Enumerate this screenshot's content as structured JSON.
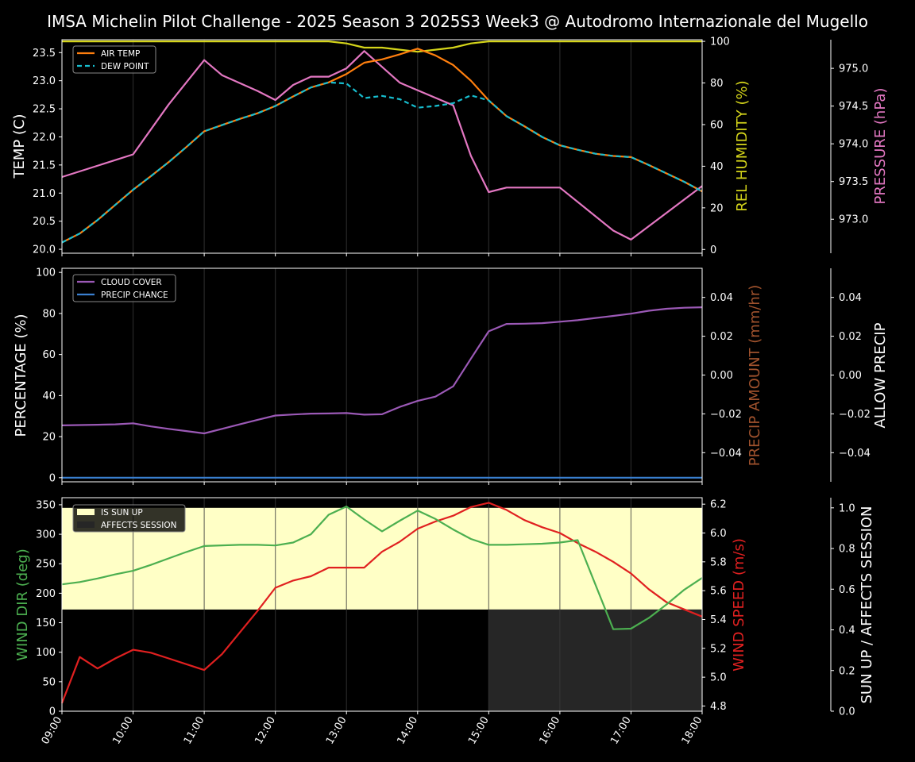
{
  "title": "IMSA Michelin Pilot Challenge - 2025 Season 3 2025S3 Week3 @ Autodromo Internazionale del Mugello",
  "x_ticks": [
    "09:00",
    "10:00",
    "11:00",
    "12:00",
    "13:00",
    "14:00",
    "15:00",
    "16:00",
    "17:00",
    "18:00"
  ],
  "colors": {
    "air_temp": "#ff7f0e",
    "dew_point": "#17becf",
    "humidity": "#d4d41a",
    "pressure": "#e377c2",
    "cloud": "#9b59b6",
    "precip_chance": "#3a7fd0",
    "precip_amount_label": "#a0522d",
    "wind_dir": "#4caf50",
    "wind_speed": "#e02020",
    "sun_up": "#ffffc6",
    "affects_session": "#262626"
  },
  "chart_data": [
    {
      "type": "line",
      "name": "panel-temperature",
      "ylabel": "TEMP (C)",
      "ylim": [
        19.93,
        23.73
      ],
      "yticks": [
        "20.0",
        "20.5",
        "21.0",
        "21.5",
        "22.0",
        "22.5",
        "23.0",
        "23.5"
      ],
      "y2label": "REL HUMIDITY (%)",
      "y2lim": [
        -1.8,
        100.8
      ],
      "y2ticks": [
        "0",
        "20",
        "40",
        "60",
        "80",
        "100"
      ],
      "y3label": "PRESSURE (hPa)",
      "y3lim": [
        972.55,
        975.38
      ],
      "y3ticks": [
        "973.0",
        "973.5",
        "974.0",
        "974.5",
        "975.0"
      ],
      "legend": [
        "AIR TEMP",
        "DEW POINT"
      ],
      "legend_position": "top-left",
      "series": [
        {
          "name": "AIR TEMP",
          "axis": "left",
          "style": "solid",
          "x": [
            9,
            9.25,
            9.5,
            9.75,
            10,
            10.25,
            10.5,
            10.75,
            11,
            11.25,
            11.5,
            11.75,
            12,
            12.25,
            12.5,
            12.75,
            13,
            13.25,
            13.5,
            13.75,
            14,
            14.25,
            14.5,
            14.75,
            15,
            15.25,
            15.5,
            15.75,
            16,
            16.25,
            16.5,
            16.75,
            17,
            17.25,
            17.5,
            17.75,
            18
          ],
          "y": [
            20.12,
            20.28,
            20.52,
            20.79,
            21.06,
            21.3,
            21.55,
            21.82,
            22.1,
            22.21,
            22.32,
            22.42,
            22.55,
            22.72,
            22.88,
            22.97,
            23.12,
            23.32,
            23.38,
            23.47,
            23.57,
            23.45,
            23.28,
            23.0,
            22.65,
            22.37,
            22.19,
            22.0,
            21.85,
            21.77,
            21.7,
            21.66,
            21.64,
            21.5,
            21.35,
            21.2,
            21.03
          ]
        },
        {
          "name": "DEW POINT",
          "axis": "left",
          "style": "dashed",
          "x": [
            9,
            9.25,
            9.5,
            9.75,
            10,
            10.25,
            10.5,
            10.75,
            11,
            11.25,
            11.5,
            11.75,
            12,
            12.25,
            12.5,
            12.75,
            13,
            13.25,
            13.5,
            13.75,
            14,
            14.25,
            14.5,
            14.75,
            15,
            15.25,
            15.5,
            15.75,
            16,
            16.25,
            16.5,
            16.75,
            17,
            17.25,
            17.5,
            17.75,
            18
          ],
          "y": [
            20.12,
            20.28,
            20.52,
            20.79,
            21.06,
            21.3,
            21.55,
            21.82,
            22.1,
            22.21,
            22.32,
            22.42,
            22.55,
            22.72,
            22.88,
            22.97,
            22.95,
            22.69,
            22.73,
            22.67,
            22.52,
            22.55,
            22.6,
            22.74,
            22.65,
            22.37,
            22.19,
            22.0,
            21.85,
            21.77,
            21.7,
            21.66,
            21.64,
            21.5,
            21.35,
            21.2,
            21.03
          ]
        },
        {
          "name": "REL HUMIDITY",
          "axis": "right",
          "x": [
            9,
            9.5,
            10,
            10.5,
            11,
            11.5,
            12,
            12.5,
            12.75,
            13,
            13.25,
            13.5,
            13.75,
            14,
            14.25,
            14.5,
            14.75,
            15,
            15.5,
            16,
            16.5,
            17,
            17.5,
            18
          ],
          "y": [
            100,
            100,
            100,
            100,
            100,
            100,
            100,
            100,
            100,
            99,
            97,
            97,
            96,
            95,
            96,
            97,
            99,
            100,
            100,
            100,
            100,
            100,
            100,
            100
          ]
        },
        {
          "name": "PRESSURE",
          "axis": "right2",
          "x": [
            9,
            10,
            10.5,
            11,
            11.25,
            11.75,
            12,
            12.25,
            12.5,
            12.75,
            13,
            13.25,
            13.75,
            14.5,
            14.75,
            15,
            15.25,
            16,
            16.75,
            17,
            18
          ],
          "y": [
            973.56,
            973.86,
            974.52,
            975.11,
            974.91,
            974.7,
            974.58,
            974.78,
            974.89,
            974.89,
            975.0,
            975.23,
            974.81,
            974.51,
            973.84,
            973.36,
            973.42,
            973.42,
            972.85,
            972.73,
            973.44
          ]
        }
      ]
    },
    {
      "type": "line",
      "name": "panel-cloud-precip",
      "ylabel": "PERCENTAGE (%)",
      "ylim": [
        -2,
        102
      ],
      "yticks": [
        "0",
        "20",
        "40",
        "60",
        "80",
        "100"
      ],
      "y2label": "PRECIP AMOUNT (mm/hr)",
      "y2lim": [
        -0.055,
        0.055
      ],
      "y2ticks": [
        "−0.04",
        "−0.02",
        "0.00",
        "0.02",
        "0.04"
      ],
      "y3label": "ALLOW PRECIP",
      "y3lim": [
        -0.055,
        0.055
      ],
      "y3ticks": [
        "−0.04",
        "−0.02",
        "0.00",
        "0.02",
        "0.04"
      ],
      "legend": [
        "CLOUD COVER",
        "PRECIP CHANCE"
      ],
      "legend_position": "top-left",
      "series": [
        {
          "name": "CLOUD COVER",
          "x": [
            9,
            9.5,
            9.75,
            10,
            10.25,
            10.5,
            10.75,
            11,
            11.25,
            11.5,
            11.75,
            12,
            12.25,
            12.5,
            12.75,
            13,
            13.25,
            13.5,
            13.75,
            14,
            14.25,
            14.5,
            14.75,
            15,
            15.25,
            15.5,
            15.75,
            16,
            16.25,
            16.5,
            16.75,
            17,
            17.25,
            17.5,
            17.75,
            18
          ],
          "y": [
            25.5,
            25.8,
            26.0,
            26.5,
            25.0,
            23.8,
            22.7,
            21.6,
            23.8,
            26.0,
            28.2,
            30.3,
            30.8,
            31.2,
            31.3,
            31.5,
            30.7,
            30.9,
            34.5,
            37.4,
            39.5,
            44.5,
            58.0,
            71.3,
            74.9,
            75.0,
            75.3,
            76.0,
            76.7,
            77.8,
            78.8,
            79.9,
            81.3,
            82.3,
            82.8,
            83.0
          ]
        },
        {
          "name": "PRECIP CHANCE",
          "x": [
            9,
            18
          ],
          "y": [
            0,
            0
          ]
        }
      ]
    },
    {
      "type": "line",
      "name": "panel-wind",
      "ylabel": "WIND DIR (deg)",
      "ylim": [
        0,
        362
      ],
      "yticks": [
        "0",
        "50",
        "100",
        "150",
        "200",
        "250",
        "300",
        "350"
      ],
      "y2label": "WIND SPEED (m/s)",
      "y2lim": [
        4.764,
        6.245
      ],
      "y2ticks": [
        "4.8",
        "5.0",
        "5.2",
        "5.4",
        "5.6",
        "5.8",
        "6.0",
        "6.2"
      ],
      "y3label": "SUN UP / AFFECTS SESSION",
      "y3lim": [
        0,
        1.05
      ],
      "y3ticks": [
        "0.0",
        "0.2",
        "0.4",
        "0.6",
        "0.8",
        "1.0"
      ],
      "legend": [
        "IS SUN UP",
        "AFFECTS SESSION"
      ],
      "legend_position": "top-left",
      "sun_up": {
        "x_start": 9,
        "x_end": 18,
        "value": 1.0
      },
      "affects_session": {
        "x_start": 15,
        "x_end": 18,
        "value": 0.5
      },
      "series": [
        {
          "name": "WIND DIR",
          "axis": "left",
          "x": [
            9,
            9.25,
            9.5,
            9.75,
            10,
            10.25,
            10.5,
            10.75,
            11,
            11.5,
            11.75,
            12,
            12.25,
            12.5,
            12.75,
            13,
            13.25,
            13.5,
            13.75,
            14,
            14.25,
            14.5,
            14.75,
            15,
            15.25,
            15.5,
            15.75,
            16,
            16.25,
            16.75,
            17,
            17.25,
            17.5,
            17.75,
            18
          ],
          "y": [
            215,
            219,
            225,
            232,
            238,
            248,
            259,
            270,
            280,
            282,
            282,
            281,
            286,
            300,
            333,
            347,
            325,
            305,
            323,
            340,
            326,
            308,
            292,
            282,
            282,
            283,
            284,
            286,
            290,
            139,
            140,
            158,
            181,
            206,
            226
          ]
        },
        {
          "name": "WIND SPEED",
          "axis": "right",
          "x": [
            9,
            9.25,
            9.5,
            9.75,
            10,
            10.25,
            10.5,
            10.75,
            11,
            11.25,
            11.5,
            11.75,
            12,
            12.25,
            12.5,
            12.75,
            13,
            13.25,
            13.5,
            13.75,
            14,
            14.25,
            14.5,
            14.75,
            15,
            15.25,
            15.5,
            15.75,
            16,
            16.25,
            16.5,
            16.75,
            17,
            17.25,
            17.5,
            17.75,
            18
          ],
          "y": [
            4.82,
            5.14,
            5.06,
            5.13,
            5.19,
            5.17,
            5.13,
            5.09,
            5.05,
            5.16,
            5.31,
            5.46,
            5.62,
            5.67,
            5.7,
            5.76,
            5.76,
            5.76,
            5.87,
            5.94,
            6.03,
            6.08,
            6.12,
            6.18,
            6.21,
            6.16,
            6.09,
            6.04,
            6.0,
            5.93,
            5.87,
            5.8,
            5.72,
            5.61,
            5.52,
            5.47,
            5.42
          ]
        }
      ]
    }
  ]
}
